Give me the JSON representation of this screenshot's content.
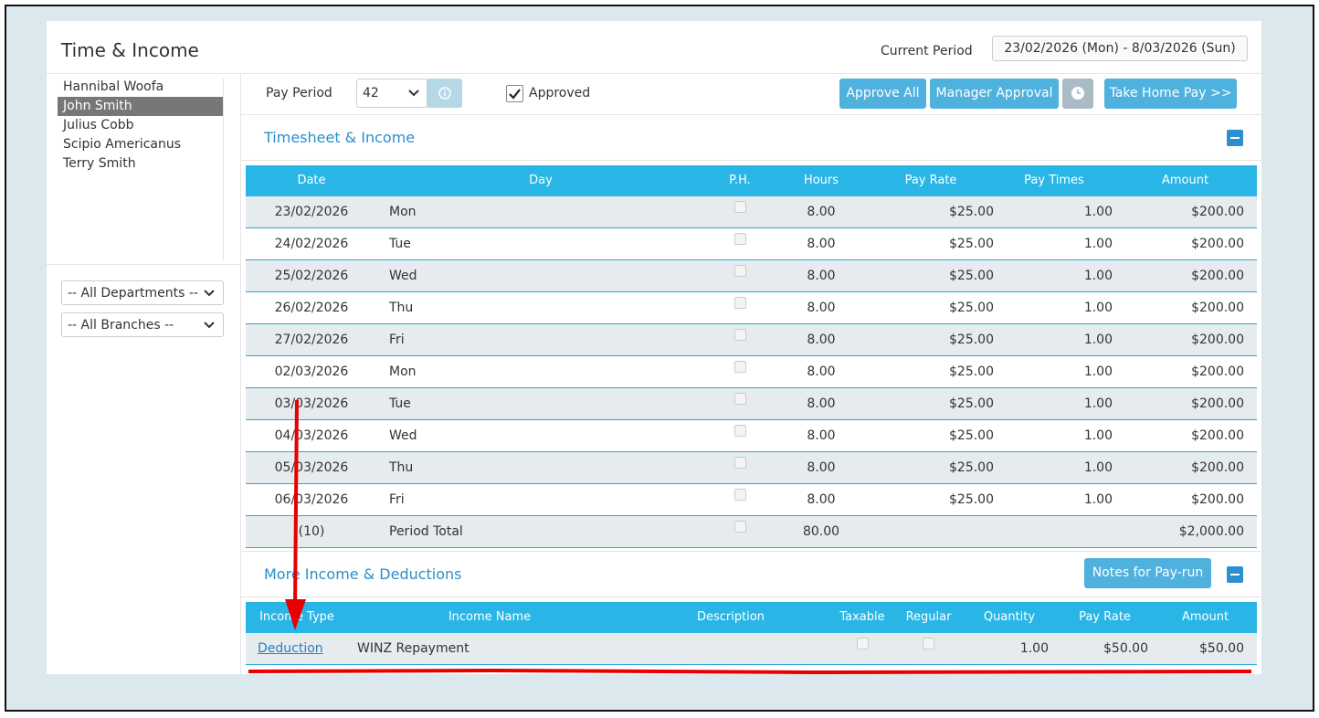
{
  "header": {
    "title": "Time & Income",
    "period_label": "Current Period",
    "period_value": "23/02/2026 (Mon) - 8/03/2026 (Sun)"
  },
  "employees": [
    "Hannibal Woofa",
    "John Smith",
    "Julius Cobb",
    "Scipio Americanus",
    "Terry Smith"
  ],
  "filters": [
    "-- All Departments --",
    "-- All Branches --"
  ],
  "toolbar": {
    "pay_period_label": "Pay Period",
    "pay_period_value": "42",
    "approved_label": "Approved",
    "buttons": [
      "Approve All",
      "Manager Approval",
      "Take Home Pay >>"
    ]
  },
  "timesheet": {
    "title": "Timesheet & Income",
    "columns": [
      "Date",
      "Day",
      "P.H.",
      "Hours",
      "Pay Rate",
      "Pay Times",
      "Amount"
    ],
    "rows": [
      {
        "date": "23/02/2026",
        "day": "Mon",
        "hours": "8.00",
        "pay_rate": "$25.00",
        "pay_times": "1.00",
        "amount": "$200.00"
      },
      {
        "date": "24/02/2026",
        "day": "Tue",
        "hours": "8.00",
        "pay_rate": "$25.00",
        "pay_times": "1.00",
        "amount": "$200.00"
      },
      {
        "date": "25/02/2026",
        "day": "Wed",
        "hours": "8.00",
        "pay_rate": "$25.00",
        "pay_times": "1.00",
        "amount": "$200.00"
      },
      {
        "date": "26/02/2026",
        "day": "Thu",
        "hours": "8.00",
        "pay_rate": "$25.00",
        "pay_times": "1.00",
        "amount": "$200.00"
      },
      {
        "date": "27/02/2026",
        "day": "Fri",
        "hours": "8.00",
        "pay_rate": "$25.00",
        "pay_times": "1.00",
        "amount": "$200.00"
      },
      {
        "date": "02/03/2026",
        "day": "Mon",
        "hours": "8.00",
        "pay_rate": "$25.00",
        "pay_times": "1.00",
        "amount": "$200.00"
      },
      {
        "date": "03/03/2026",
        "day": "Tue",
        "hours": "8.00",
        "pay_rate": "$25.00",
        "pay_times": "1.00",
        "amount": "$200.00"
      },
      {
        "date": "04/03/2026",
        "day": "Wed",
        "hours": "8.00",
        "pay_rate": "$25.00",
        "pay_times": "1.00",
        "amount": "$200.00"
      },
      {
        "date": "05/03/2026",
        "day": "Thu",
        "hours": "8.00",
        "pay_rate": "$25.00",
        "pay_times": "1.00",
        "amount": "$200.00"
      },
      {
        "date": "06/03/2026",
        "day": "Fri",
        "hours": "8.00",
        "pay_rate": "$25.00",
        "pay_times": "1.00",
        "amount": "$200.00"
      }
    ],
    "total": {
      "date": "(10)",
      "day": "Period Total",
      "hours": "80.00",
      "amount": "$2,000.00"
    }
  },
  "income": {
    "title": "More Income & Deductions",
    "notes_button": "Notes for Pay-run",
    "columns": [
      "Income Type",
      "Income Name",
      "Description",
      "Taxable",
      "Regular",
      "Quantity",
      "Pay Rate",
      "Amount"
    ],
    "rows": [
      {
        "type": "Deduction",
        "name": "WINZ Repayment",
        "quantity": "1.00",
        "pay_rate": "$50.00",
        "amount": "$50.00"
      }
    ]
  }
}
